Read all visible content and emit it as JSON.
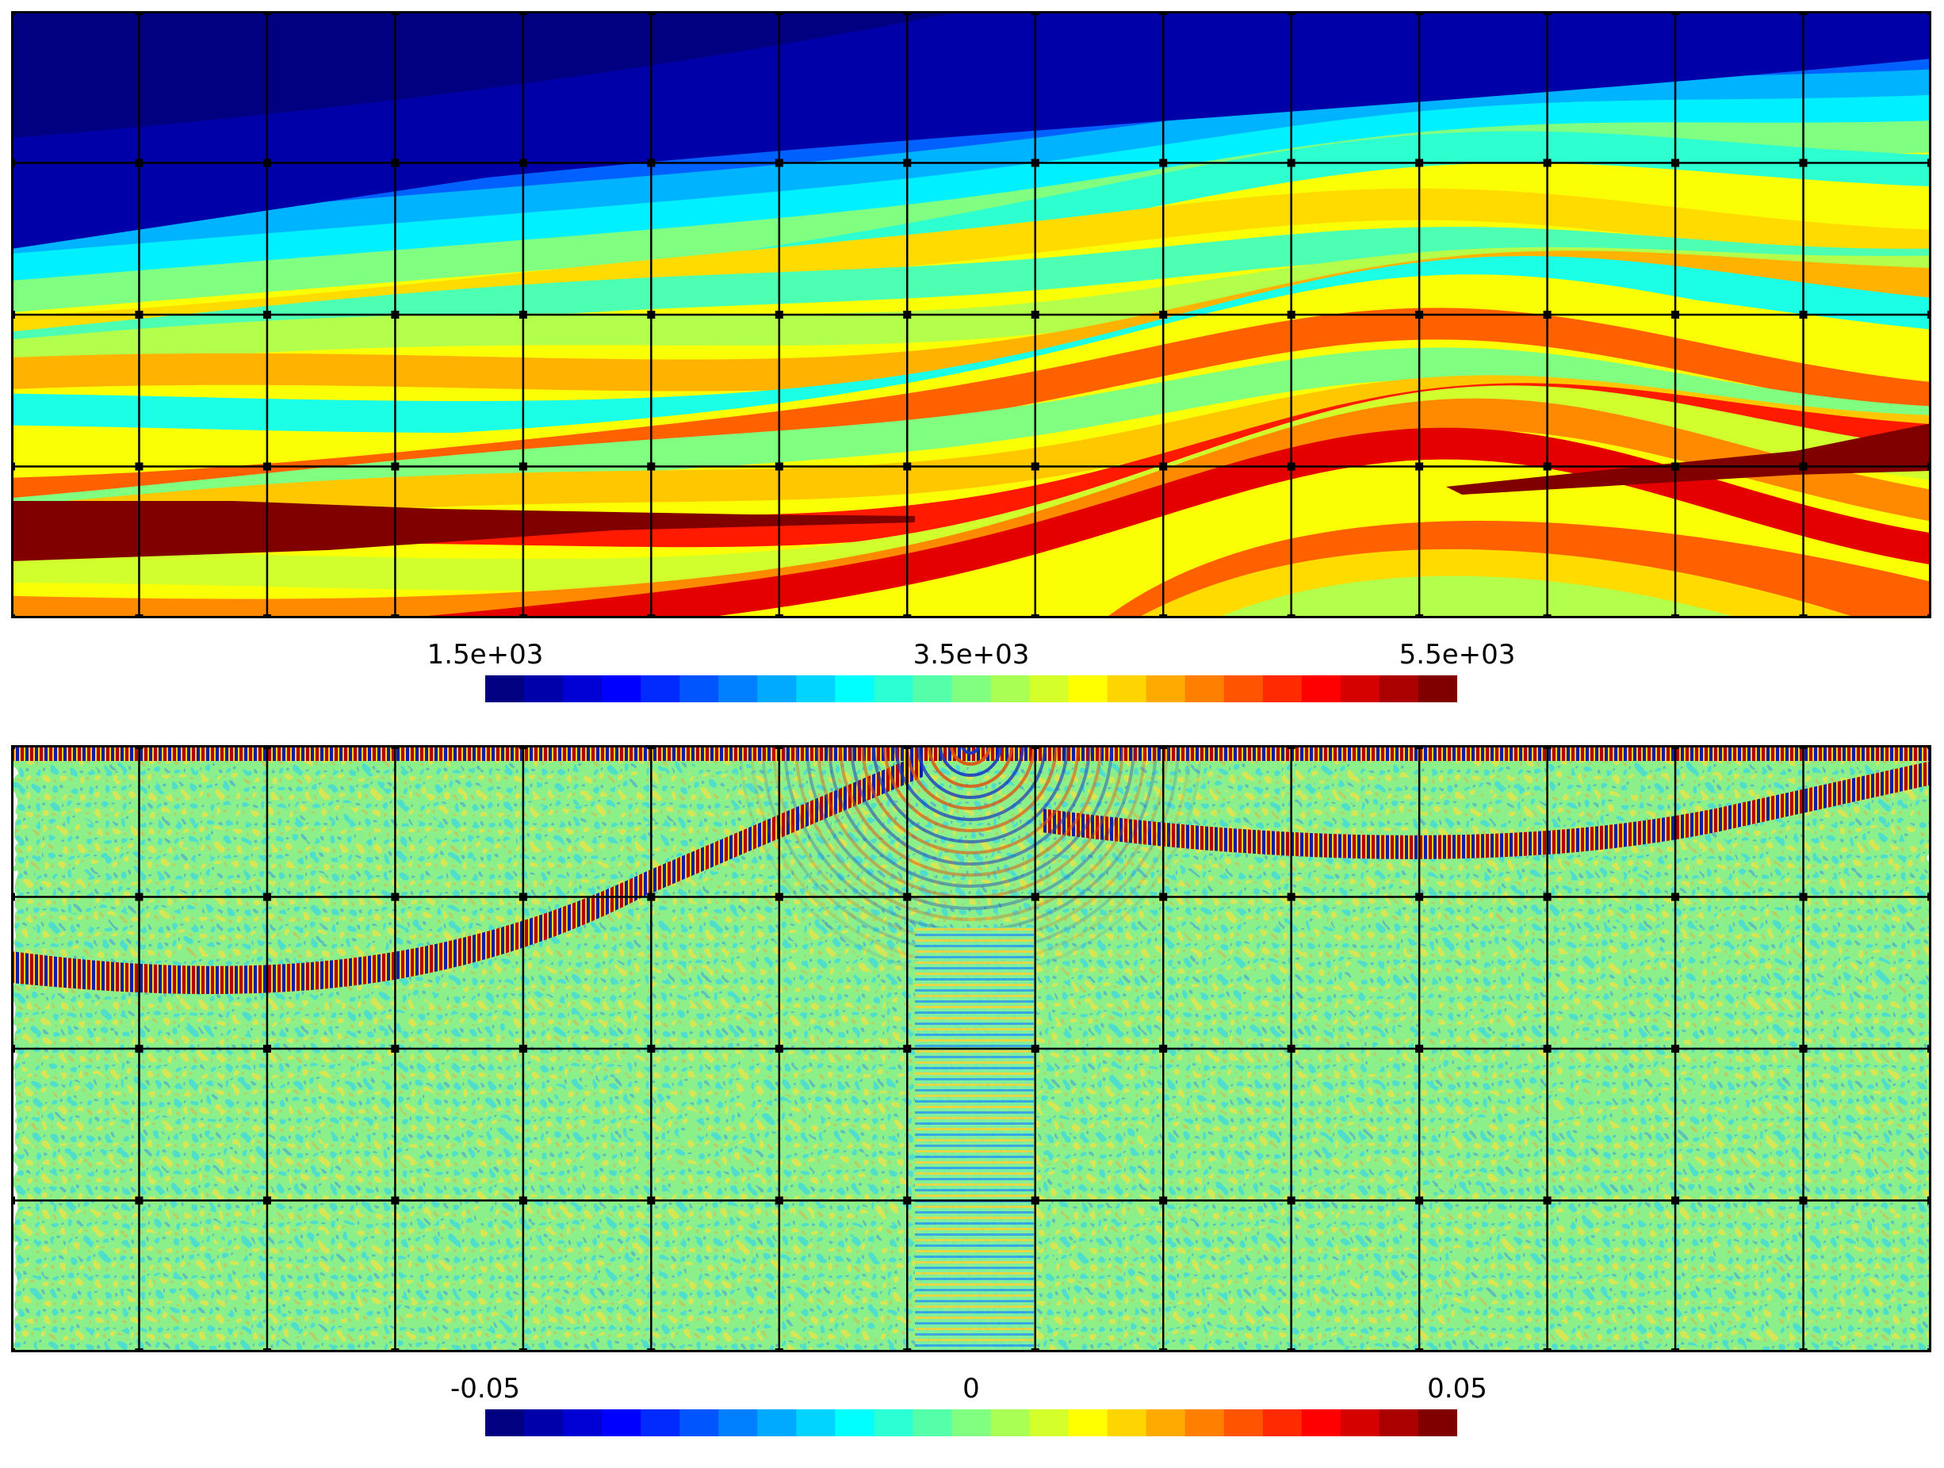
{
  "chart_data": [
    {
      "type": "heatmap",
      "title": "",
      "colormap": "jet",
      "colorbar": {
        "tick_labels": [
          "1.5e+03",
          "3.5e+03",
          "5.5e+03"
        ],
        "tick_values": [
          1500,
          3500,
          5500
        ],
        "range": [
          500,
          5500
        ],
        "n_bins": 25
      },
      "grid": true,
      "grid_cells": [
        15,
        4
      ]
    },
    {
      "type": "heatmap",
      "title": "",
      "colormap": "jet",
      "colorbar": {
        "tick_labels": [
          "-0.05",
          "0",
          "0.05"
        ],
        "tick_values": [
          -0.05,
          0,
          0.05
        ],
        "range": [
          -0.06,
          0.06
        ],
        "n_bins": 25
      },
      "grid": true,
      "grid_cells": [
        15,
        4
      ]
    }
  ],
  "colors": {
    "grid": "#000000",
    "background": "#ffffff"
  }
}
